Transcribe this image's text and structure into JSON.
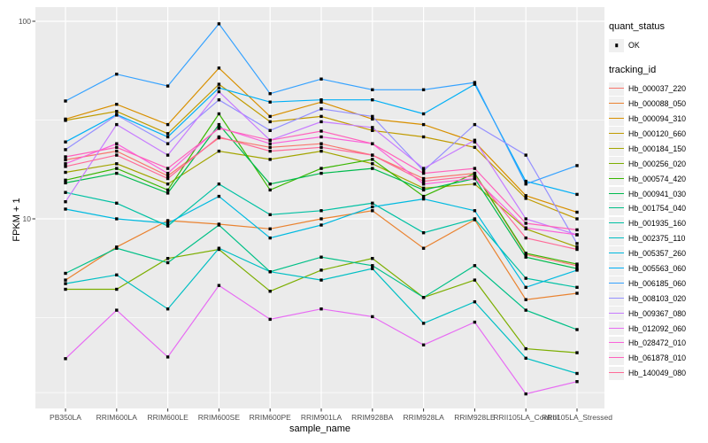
{
  "figure": {
    "x_axis_title": "sample_name",
    "y_axis_title": "FPKM + 1",
    "y_tick_labels": [
      "100",
      "10"
    ]
  },
  "legend": {
    "quant_title": "quant_status",
    "quant_item_label": "OK",
    "tracking_title": "tracking_id"
  },
  "style": {
    "panel_background": "#EBEBEB",
    "gridline_color": "#FFFFFF",
    "point_color": "#000000",
    "axis_text_color": "#4d4d4d",
    "legend_key_background": "#F0F0F0"
  },
  "chart_data": {
    "type": "line",
    "title": "",
    "xlabel": "sample_name",
    "ylabel": "FPKM + 1",
    "y_scale": "log10",
    "ylim": [
      1.1,
      117
    ],
    "y_major_ticks": [
      100,
      10
    ],
    "y_minor_gridlines": [
      31.6,
      3.16,
      1.32
    ],
    "grid": true,
    "legend_position": "right",
    "quant_status_legend": {
      "title": "quant_status",
      "items": [
        "OK"
      ]
    },
    "series_legend_title": "tracking_id",
    "x_categories": [
      "PB350LA",
      "RRIM600LA",
      "RRIM600LE",
      "RRIM600SE",
      "RRIM600PE",
      "RRIM901LA",
      "RRIM928BA",
      "RRIM928LA",
      "RRIM928LE",
      "RRII105LA_Control",
      "RRII105LA_Stressed"
    ],
    "series": [
      {
        "name": "Hb_000037_220",
        "color": "#F8766D",
        "values": [
          19.9,
          22,
          16.5,
          25.7,
          23,
          24,
          21,
          16,
          17,
          6.6,
          5.8
        ]
      },
      {
        "name": "Hb_000088_050",
        "color": "#EA8331",
        "values": [
          4.9,
          7.2,
          9.8,
          9.4,
          8.9,
          10,
          11,
          7.1,
          9.9,
          3.9,
          4.2
        ]
      },
      {
        "name": "Hb_000094_310",
        "color": "#D89000",
        "values": [
          32,
          38,
          30,
          58,
          33,
          39,
          32,
          30,
          24.5,
          13.1,
          10.8
        ]
      },
      {
        "name": "Hb_000120_660",
        "color": "#C09B00",
        "values": [
          31.5,
          35,
          27,
          48,
          31,
          33,
          28,
          26,
          23,
          12.7,
          10
        ]
      },
      {
        "name": "Hb_000184_150",
        "color": "#A3A500",
        "values": [
          17.2,
          19,
          15,
          22,
          20,
          22,
          19,
          14.3,
          15,
          8.9,
          7.2
        ]
      },
      {
        "name": "Hb_000256_020",
        "color": "#7CAE00",
        "values": [
          4.4,
          4.4,
          6.3,
          7,
          4.3,
          5.5,
          6.3,
          4,
          4.9,
          2.2,
          2.1
        ]
      },
      {
        "name": "Hb_000574_420",
        "color": "#39B600",
        "values": [
          15.7,
          18,
          14,
          34,
          14,
          18,
          20,
          13,
          17,
          6.7,
          5.9
        ]
      },
      {
        "name": "Hb_000941_030",
        "color": "#00BB4E",
        "values": [
          15.2,
          17,
          13.5,
          30,
          15,
          17,
          18,
          14,
          16,
          6.4,
          5.6
        ]
      },
      {
        "name": "Hb_001754_040",
        "color": "#00C087",
        "values": [
          5.3,
          7.1,
          6,
          9.3,
          5.4,
          6.4,
          5.8,
          4,
          5.8,
          3.45,
          2.75
        ]
      },
      {
        "name": "Hb_001935_160",
        "color": "#00C1A3",
        "values": [
          13.6,
          12,
          9.2,
          15,
          10.5,
          11,
          12,
          8.5,
          10,
          5,
          4.5
        ]
      },
      {
        "name": "Hb_002375_110",
        "color": "#00BFC4",
        "values": [
          4.7,
          5.2,
          3.5,
          7.1,
          5.4,
          4.9,
          5.6,
          2.96,
          3.8,
          1.97,
          1.65
        ]
      },
      {
        "name": "Hb_005357_260",
        "color": "#00BAE0",
        "values": [
          11.2,
          10,
          9.5,
          13,
          8,
          9.3,
          11.5,
          12.6,
          11,
          4.5,
          5.5
        ]
      },
      {
        "name": "Hb_005563_060",
        "color": "#00B0F6",
        "values": [
          24.5,
          33.7,
          26,
          46,
          39,
          40,
          40,
          34,
          48,
          15.5,
          13.3
        ]
      },
      {
        "name": "Hb_006185_060",
        "color": "#35A2FF",
        "values": [
          39.5,
          54,
          47,
          97,
          43,
          51,
          45,
          45,
          49,
          15,
          18.6
        ]
      },
      {
        "name": "Hb_008103_020",
        "color": "#9590FF",
        "values": [
          22.4,
          33.5,
          24,
          40,
          28,
          36,
          33,
          17.5,
          30,
          21,
          7.5
        ]
      },
      {
        "name": "Hb_009367_080",
        "color": "#C77CFF",
        "values": [
          12.2,
          30,
          21,
          44,
          25,
          31,
          29,
          18,
          25,
          10,
          8.3
        ]
      },
      {
        "name": "Hb_012092_060",
        "color": "#E76BF3",
        "values": [
          1.96,
          3.45,
          2,
          4.6,
          3.1,
          3.5,
          3.2,
          2.3,
          3,
          1.3,
          1.5
        ]
      },
      {
        "name": "Hb_028472_010",
        "color": "#FA62DB",
        "values": [
          19,
          24,
          17,
          29,
          24,
          26,
          24,
          15,
          16,
          9,
          8.3
        ]
      },
      {
        "name": "Hb_061878_010",
        "color": "#FF62BC",
        "values": [
          20.6,
          23,
          18,
          28.7,
          25,
          27.8,
          24,
          17,
          18,
          9.5,
          8.8
        ]
      },
      {
        "name": "Hb_140049_080",
        "color": "#FF6A98",
        "values": [
          18.4,
          21,
          16,
          26,
          22,
          23,
          21,
          15.5,
          16.5,
          8,
          7
        ]
      }
    ]
  }
}
